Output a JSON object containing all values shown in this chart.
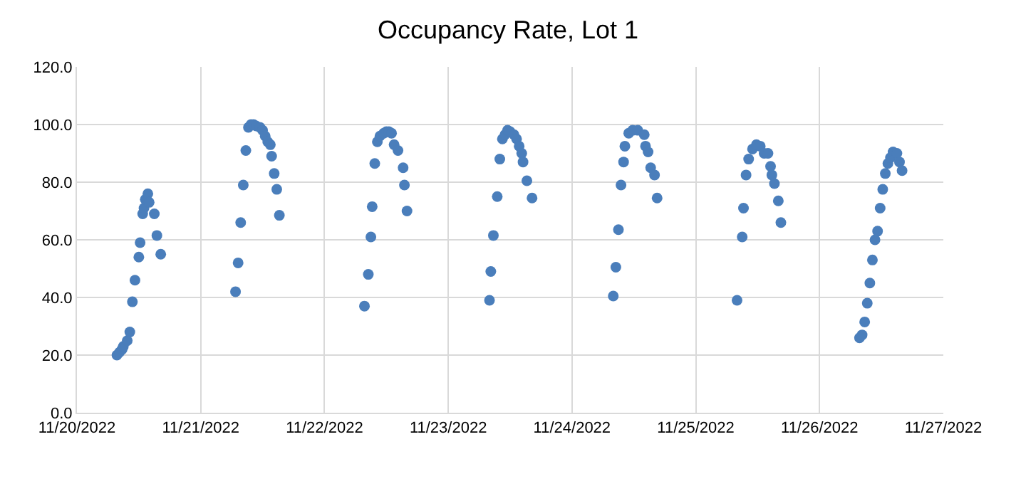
{
  "chart_data": {
    "type": "scatter",
    "title": "Occupancy Rate, Lot 1",
    "marker": "circle",
    "grid": true,
    "xlim": [
      "2022-11-20",
      "2022-11-27"
    ],
    "xticks": [
      {
        "value": "2022-11-20",
        "label": "11/20/2022"
      },
      {
        "value": "2022-11-21",
        "label": "11/21/2022"
      },
      {
        "value": "2022-11-22",
        "label": "11/22/2022"
      },
      {
        "value": "2022-11-23",
        "label": "11/23/2022"
      },
      {
        "value": "2022-11-24",
        "label": "11/24/2022"
      },
      {
        "value": "2022-11-25",
        "label": "11/25/2022"
      },
      {
        "value": "2022-11-26",
        "label": "11/26/2022"
      },
      {
        "value": "2022-11-27",
        "label": "11/27/2022"
      }
    ],
    "ylim": [
      0,
      120
    ],
    "yticks": [
      {
        "value": 0,
        "label": "0.0"
      },
      {
        "value": 20,
        "label": "20.0"
      },
      {
        "value": 40,
        "label": "40.0"
      },
      {
        "value": 60,
        "label": "60.0"
      },
      {
        "value": 80,
        "label": "80.0"
      },
      {
        "value": 100,
        "label": "100.0"
      },
      {
        "value": 120,
        "label": "120.0"
      }
    ],
    "series": [
      {
        "color": "#4a7ebb",
        "x": [
          "2022-11-20T07:45",
          "2022-11-20T08:15",
          "2022-11-20T08:45",
          "2022-11-20T09:00",
          "2022-11-20T09:45",
          "2022-11-20T10:15",
          "2022-11-20T10:45",
          "2022-11-20T11:15",
          "2022-11-20T12:00",
          "2022-11-20T12:15",
          "2022-11-20T12:45",
          "2022-11-20T13:00",
          "2022-11-20T13:15",
          "2022-11-20T13:45",
          "2022-11-20T14:00",
          "2022-11-20T15:00",
          "2022-11-20T15:30",
          "2022-11-20T16:15",
          "2022-11-21T06:45",
          "2022-11-21T07:15",
          "2022-11-21T07:45",
          "2022-11-21T08:15",
          "2022-11-21T08:45",
          "2022-11-21T09:15",
          "2022-11-21T09:45",
          "2022-11-21T10:15",
          "2022-11-21T10:45",
          "2022-11-21T11:30",
          "2022-11-21T12:00",
          "2022-11-21T12:30",
          "2022-11-21T13:00",
          "2022-11-21T13:30",
          "2022-11-21T13:45",
          "2022-11-21T14:15",
          "2022-11-21T14:45",
          "2022-11-21T15:15",
          "2022-11-22T07:45",
          "2022-11-22T08:30",
          "2022-11-22T09:00",
          "2022-11-22T09:15",
          "2022-11-22T09:45",
          "2022-11-22T10:15",
          "2022-11-22T10:45",
          "2022-11-22T11:30",
          "2022-11-22T12:00",
          "2022-11-22T12:30",
          "2022-11-22T13:00",
          "2022-11-22T13:30",
          "2022-11-22T14:15",
          "2022-11-22T15:15",
          "2022-11-22T15:30",
          "2022-11-22T16:00",
          "2022-11-23T08:00",
          "2022-11-23T08:15",
          "2022-11-23T08:45",
          "2022-11-23T09:30",
          "2022-11-23T10:00",
          "2022-11-23T10:30",
          "2022-11-23T11:00",
          "2022-11-23T11:30",
          "2022-11-23T12:00",
          "2022-11-23T12:45",
          "2022-11-23T13:15",
          "2022-11-23T13:45",
          "2022-11-23T14:15",
          "2022-11-23T14:30",
          "2022-11-23T15:15",
          "2022-11-23T16:15",
          "2022-11-24T08:00",
          "2022-11-24T08:30",
          "2022-11-24T09:00",
          "2022-11-24T09:30",
          "2022-11-24T10:00",
          "2022-11-24T10:15",
          "2022-11-24T11:00",
          "2022-11-24T11:45",
          "2022-11-24T12:45",
          "2022-11-24T14:00",
          "2022-11-24T14:15",
          "2022-11-24T14:45",
          "2022-11-24T15:15",
          "2022-11-24T16:00",
          "2022-11-24T16:30",
          "2022-11-25T08:00",
          "2022-11-25T09:00",
          "2022-11-25T09:15",
          "2022-11-25T09:45",
          "2022-11-25T10:15",
          "2022-11-25T11:00",
          "2022-11-25T11:45",
          "2022-11-25T12:30",
          "2022-11-25T13:15",
          "2022-11-25T14:00",
          "2022-11-25T14:30",
          "2022-11-25T14:45",
          "2022-11-25T15:15",
          "2022-11-25T16:00",
          "2022-11-25T16:30",
          "2022-11-26T07:45",
          "2022-11-26T08:15",
          "2022-11-26T08:45",
          "2022-11-26T09:15",
          "2022-11-26T09:45",
          "2022-11-26T10:15",
          "2022-11-26T10:45",
          "2022-11-26T11:15",
          "2022-11-26T11:45",
          "2022-11-26T12:15",
          "2022-11-26T12:45",
          "2022-11-26T13:15",
          "2022-11-26T13:45",
          "2022-11-26T14:15",
          "2022-11-26T15:00",
          "2022-11-26T15:30",
          "2022-11-26T16:00"
        ],
        "values": [
          20,
          21,
          22,
          23,
          25,
          28,
          38.5,
          46,
          54,
          59,
          69,
          71,
          74,
          76,
          73,
          69,
          61.5,
          55,
          42,
          52,
          66,
          79,
          91,
          99,
          100,
          100,
          99.5,
          99,
          98,
          96,
          94,
          93,
          89,
          83,
          77.5,
          68.5,
          37,
          48,
          61,
          71.5,
          86.5,
          94,
          96,
          97,
          97.5,
          97.5,
          97,
          93,
          91,
          85,
          79,
          70,
          39,
          49,
          61.5,
          75,
          88,
          95,
          96.5,
          98,
          97.5,
          96.5,
          95,
          92.5,
          90,
          87,
          80.5,
          74.5,
          40.5,
          50.5,
          63.5,
          79,
          87,
          92.5,
          97,
          98,
          98,
          96.5,
          92.5,
          90.5,
          85,
          82.5,
          74.5,
          39,
          61,
          71,
          82.5,
          88,
          91.5,
          93,
          92.5,
          90,
          90,
          85.5,
          82.5,
          79.5,
          73.5,
          66,
          26,
          27,
          31.5,
          38,
          45,
          53,
          60,
          63,
          71,
          77.5,
          83,
          86.5,
          88.5,
          90.5,
          90,
          87,
          84
        ]
      }
    ]
  }
}
